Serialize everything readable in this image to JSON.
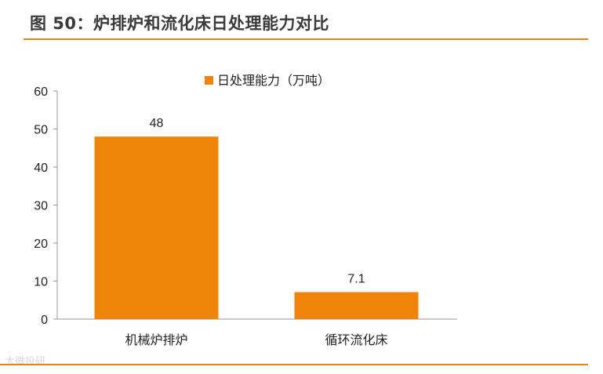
{
  "header": {
    "title": "图 50：炉排炉和流化床日处理能力对比",
    "watermark": "大微投研"
  },
  "colors": {
    "accent": "#e0851a",
    "bar": "#f0840a"
  },
  "chart_data": {
    "type": "bar",
    "categories": [
      "机械炉排炉",
      "循环流化床"
    ],
    "series": [
      {
        "name": "日处理能力（万吨）",
        "values": [
          48,
          7.1
        ]
      }
    ],
    "data_labels": [
      "48",
      "7.1"
    ],
    "ylim": [
      0,
      60
    ],
    "yticks": [
      0,
      10,
      20,
      30,
      40,
      50,
      60
    ],
    "xlabel": "",
    "ylabel": "",
    "grid": false,
    "legend_position": "top-center"
  }
}
